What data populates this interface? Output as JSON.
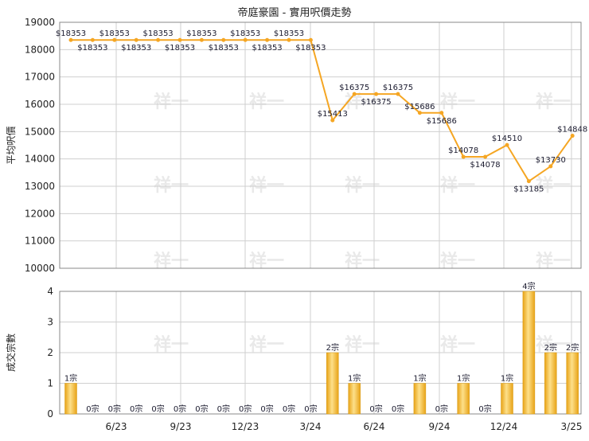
{
  "chart_data": {
    "title": "帝庭豪園 - 實用呎價走勢",
    "x_tick_labels": [
      "6/23",
      "9/23",
      "12/23",
      "3/24",
      "6/24",
      "9/24",
      "12/24",
      "3/25"
    ],
    "watermark": "祥一",
    "colors": {
      "line": "#f5a623",
      "bar_light": "#fde08a",
      "bar_dark": "#e8a317",
      "grid": "#cfcfcf",
      "axis": "#888888"
    },
    "charts": [
      {
        "type": "line",
        "ylabel": "平均呎價",
        "ylim": [
          10000,
          19000
        ],
        "yticks": [
          10000,
          11000,
          12000,
          13000,
          14000,
          15000,
          16000,
          17000,
          18000,
          19000
        ],
        "grid": true,
        "points": [
          {
            "v": 18353,
            "label": "$18353",
            "pos": "above"
          },
          {
            "v": 18353,
            "label": "$18353",
            "pos": "below"
          },
          {
            "v": 18353,
            "label": "$18353",
            "pos": "above"
          },
          {
            "v": 18353,
            "label": "$18353",
            "pos": "below"
          },
          {
            "v": 18353,
            "label": "$18353",
            "pos": "above"
          },
          {
            "v": 18353,
            "label": "$18353",
            "pos": "below"
          },
          {
            "v": 18353,
            "label": "$18353",
            "pos": "above"
          },
          {
            "v": 18353,
            "label": "$18353",
            "pos": "below"
          },
          {
            "v": 18353,
            "label": "$18353",
            "pos": "above"
          },
          {
            "v": 18353,
            "label": "$18353",
            "pos": "below"
          },
          {
            "v": 18353,
            "label": "$18353",
            "pos": "above"
          },
          {
            "v": 18353,
            "label": "$18353",
            "pos": "below"
          },
          {
            "v": 15413,
            "label": "$15413",
            "pos": "above"
          },
          {
            "v": 16375,
            "label": "$16375",
            "pos": "above"
          },
          {
            "v": 16375,
            "label": "$16375",
            "pos": "below"
          },
          {
            "v": 16375,
            "label": "$16375",
            "pos": "above"
          },
          {
            "v": 15686,
            "label": "$15686",
            "pos": "above"
          },
          {
            "v": 15686,
            "label": "$15686",
            "pos": "below"
          },
          {
            "v": 14078,
            "label": "$14078",
            "pos": "above"
          },
          {
            "v": 14078,
            "label": "$14078",
            "pos": "below"
          },
          {
            "v": 14510,
            "label": "$14510",
            "pos": "above"
          },
          {
            "v": 13185,
            "label": "$13185",
            "pos": "below"
          },
          {
            "v": 13730,
            "label": "$13730",
            "pos": "above"
          },
          {
            "v": 14848,
            "label": "$14848",
            "pos": "above"
          }
        ]
      },
      {
        "type": "bar",
        "ylabel": "成交宗數",
        "ylim": [
          0,
          4
        ],
        "yticks": [
          0,
          1,
          2,
          3,
          4
        ],
        "grid": true,
        "values": [
          1,
          0,
          0,
          0,
          0,
          0,
          0,
          0,
          0,
          0,
          0,
          0,
          2,
          1,
          0,
          0,
          1,
          0,
          1,
          0,
          1,
          4,
          2,
          2
        ],
        "labels": [
          "1宗",
          "0宗",
          "0宗",
          "0宗",
          "0宗",
          "0宗",
          "0宗",
          "0宗",
          "0宗",
          "0宗",
          "0宗",
          "0宗",
          "2宗",
          "1宗",
          "0宗",
          "0宗",
          "1宗",
          "0宗",
          "1宗",
          "0宗",
          "1宗",
          "4宗",
          "2宗",
          "2宗"
        ]
      }
    ]
  }
}
